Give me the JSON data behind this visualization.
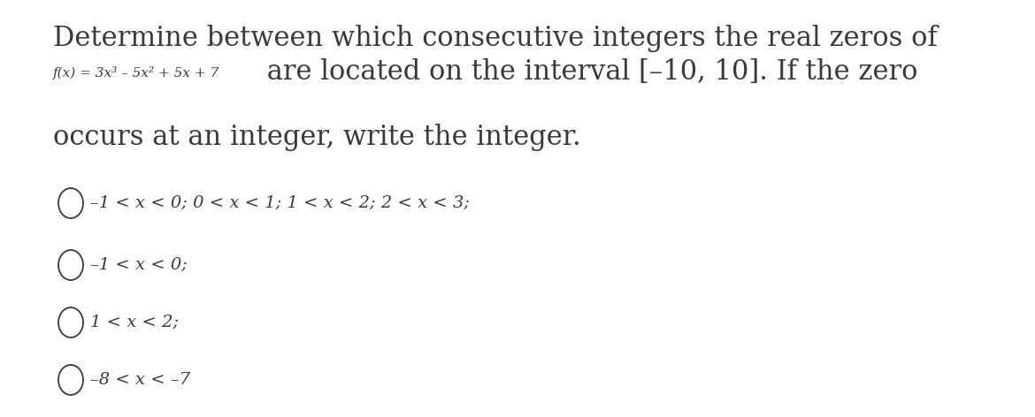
{
  "bg_color": "#ffffff",
  "figsize": [
    11.7,
    4.72
  ],
  "dpi": 100,
  "title_line1": "Determine between which consecutive integers the real zeros of",
  "title_line2_formula": "f(x) = 3x³ – 5x² + 5x + 7",
  "title_line2_rest": " are located on the interval [–10, 10]. If the zero",
  "title_line3": "occurs at an integer, write the integer.",
  "options": [
    "–1 < x < 0; 0 < x < 1; 1 < x < 2; 2 < x < 3;",
    "–1 < x < 0;",
    "1 < x < 2;",
    "–8 < x < –7"
  ],
  "text_color": "#3a3a3a",
  "font_size_large": 22,
  "font_size_formula": 11,
  "font_size_options": 14
}
